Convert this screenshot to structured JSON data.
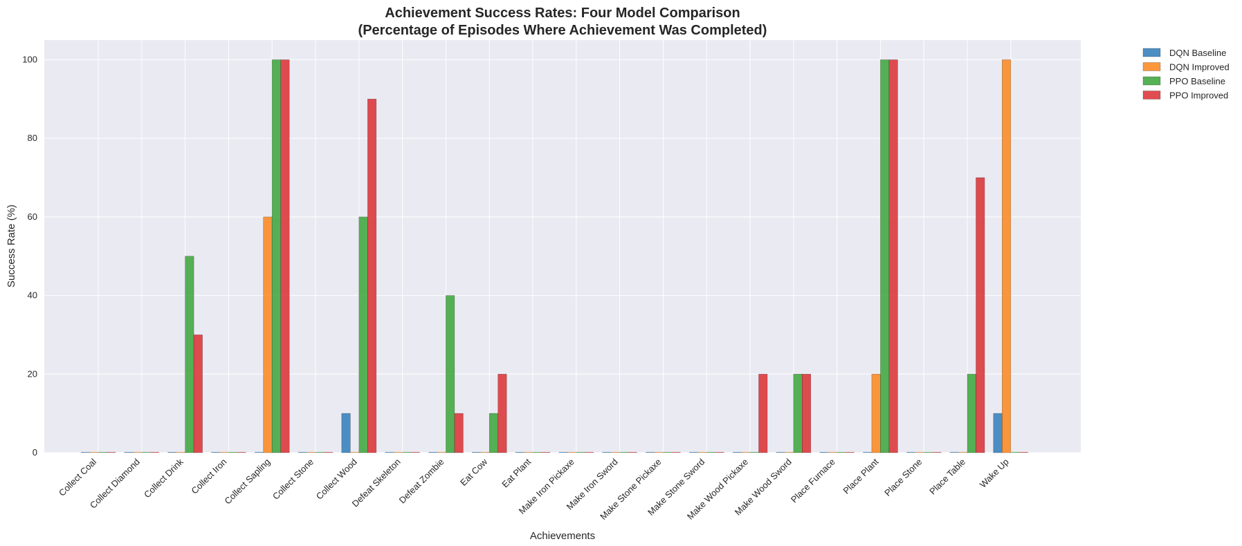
{
  "chart_data": {
    "type": "bar",
    "title": "Achievement Success Rates: Four Model Comparison",
    "subtitle": "(Percentage of Episodes Where Achievement Was Completed)",
    "xlabel": "Achievements",
    "ylabel": "Success Rate (%)",
    "ylim": [
      0,
      105
    ],
    "yticks": [
      0,
      20,
      40,
      60,
      80,
      100
    ],
    "grid": true,
    "legend_position": "outside-top-right",
    "categories": [
      "Collect Coal",
      "Collect Diamond",
      "Collect Drink",
      "Collect Iron",
      "Collect Sapling",
      "Collect Stone",
      "Collect Wood",
      "Defeat Skeleton",
      "Defeat Zombie",
      "Eat Cow",
      "Eat Plant",
      "Make Iron Pickaxe",
      "Make Iron Sword",
      "Make Stone Pickaxe",
      "Make Stone Sword",
      "Make Wood Pickaxe",
      "Make Wood Sword",
      "Place Furnace",
      "Place Plant",
      "Place Stone",
      "Place Table",
      "Wake Up"
    ],
    "series": [
      {
        "name": "DQN Baseline",
        "color": "#3b83bd",
        "values": [
          0,
          0,
          0,
          0,
          0,
          0,
          10,
          0,
          0,
          0,
          0,
          0,
          0,
          0,
          0,
          0,
          0,
          0,
          0,
          0,
          0,
          10
        ]
      },
      {
        "name": "DQN Improved",
        "color": "#fb8c28",
        "values": [
          0,
          0,
          0,
          0,
          60,
          0,
          0,
          0,
          0,
          0,
          0,
          0,
          0,
          0,
          0,
          0,
          0,
          0,
          20,
          0,
          0,
          100
        ]
      },
      {
        "name": "PPO Baseline",
        "color": "#45a843",
        "values": [
          0,
          0,
          50,
          0,
          100,
          0,
          60,
          0,
          40,
          10,
          0,
          0,
          0,
          0,
          0,
          0,
          20,
          0,
          100,
          0,
          20,
          0
        ]
      },
      {
        "name": "PPO Improved",
        "color": "#db3a3d",
        "values": [
          0,
          0,
          30,
          0,
          100,
          0,
          90,
          0,
          10,
          20,
          0,
          0,
          0,
          0,
          0,
          20,
          20,
          0,
          100,
          0,
          70,
          0
        ]
      }
    ]
  }
}
